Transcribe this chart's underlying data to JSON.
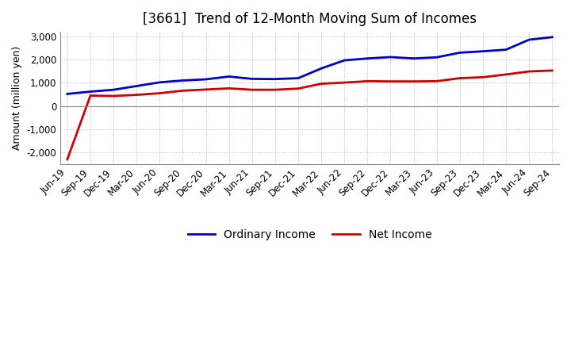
{
  "title": "[3661]  Trend of 12-Month Moving Sum of Incomes",
  "ylabel": "Amount (million yen)",
  "ylim": [
    -2500,
    3200
  ],
  "yticks": [
    -2000,
    -1000,
    0,
    1000,
    2000,
    3000
  ],
  "x_labels": [
    "Jun-19",
    "Sep-19",
    "Dec-19",
    "Mar-20",
    "Jun-20",
    "Sep-20",
    "Dec-20",
    "Mar-21",
    "Jun-21",
    "Sep-21",
    "Dec-21",
    "Mar-22",
    "Jun-22",
    "Sep-22",
    "Dec-22",
    "Mar-23",
    "Jun-23",
    "Sep-23",
    "Dec-23",
    "Mar-24",
    "Jun-24",
    "Sep-24"
  ],
  "ordinary_income": [
    520,
    620,
    700,
    860,
    1020,
    1100,
    1150,
    1270,
    1170,
    1160,
    1200,
    1620,
    1970,
    2050,
    2110,
    2050,
    2100,
    2300,
    2360,
    2430,
    2860,
    2970
  ],
  "net_income": [
    -2300,
    450,
    430,
    480,
    550,
    660,
    710,
    760,
    700,
    700,
    750,
    960,
    1010,
    1070,
    1060,
    1060,
    1070,
    1200,
    1240,
    1360,
    1490,
    1530
  ],
  "ordinary_color": "#0000cc",
  "net_color": "#cc0000",
  "grid_color": "#aaaaaa",
  "spine_color": "#888888",
  "background_color": "#ffffff",
  "title_fontsize": 12,
  "label_fontsize": 9,
  "tick_fontsize": 8.5
}
